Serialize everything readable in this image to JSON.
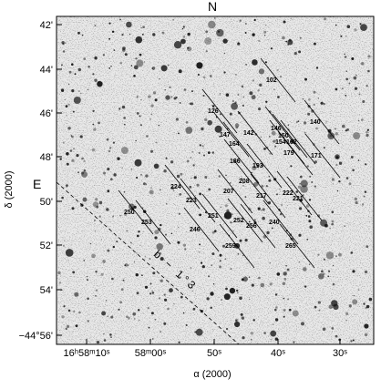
{
  "header": {
    "north": "N",
    "east": "E"
  },
  "axes": {
    "x_label": "α (2000)",
    "y_label": "δ (2000)",
    "x_ticks": [
      "16ʰ58ᵐ10ˢ",
      "58ᵐ00ˢ",
      "50ˢ",
      "40ˢ",
      "30ˢ"
    ],
    "y_ticks": [
      "42'",
      "44'",
      "46'",
      "48'",
      "50'",
      "52'",
      "54'",
      "−44°56'"
    ]
  },
  "annotation": "b − 1°3",
  "stars": [
    "102",
    "126",
    "140",
    "142",
    "146",
    "147",
    "150",
    "154",
    "162",
    "164",
    "171",
    "179",
    "186",
    "193",
    "208",
    "207",
    "217",
    "222",
    "221",
    "224",
    "223",
    "250",
    "253",
    "251",
    "252",
    "256",
    "240",
    "246",
    "259",
    "265"
  ]
}
